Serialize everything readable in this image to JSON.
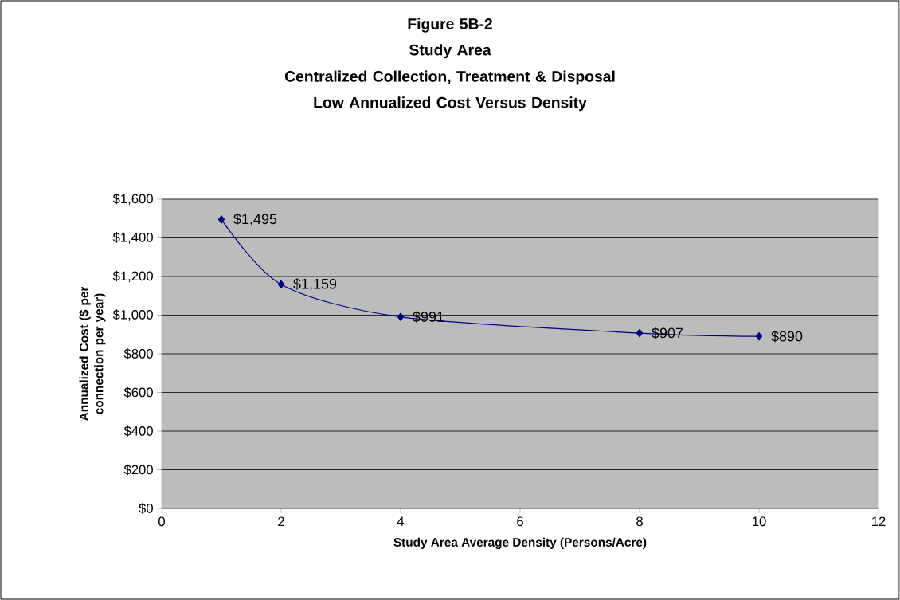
{
  "chart_data": {
    "type": "line",
    "title": "Figure 5B-2 Study Area",
    "subtitle": "Centralized Collection, Treatment & Disposal Low Annualized Cost Versus Density",
    "xlabel": "Study Area Average Density (Persons/Acre)",
    "ylabel": "Annualized Cost ($ per connection per year)",
    "x": [
      1,
      2,
      4,
      8,
      10
    ],
    "series": [
      {
        "color": "#000080",
        "values": [
          1495,
          1159,
          991,
          907,
          890
        ],
        "value_labels": [
          "$1,495",
          "$1,159",
          "$991",
          "$907",
          "$890"
        ]
      }
    ],
    "xlim": [
      0,
      12
    ],
    "xticks": [
      0,
      2,
      4,
      6,
      8,
      10,
      12
    ],
    "ylim": [
      0,
      1600
    ],
    "yticks": [
      {
        "value": 0,
        "label": "$0"
      },
      {
        "value": 200,
        "label": "$200"
      },
      {
        "value": 400,
        "label": "$400"
      },
      {
        "value": 600,
        "label": "$600"
      },
      {
        "value": 800,
        "label": "$800"
      },
      {
        "value": 1000,
        "label": "$1,000"
      },
      {
        "value": 1200,
        "label": "$1,200"
      },
      {
        "value": 1400,
        "label": "$1,400"
      },
      {
        "value": 1600,
        "label": "$1,600"
      }
    ],
    "grid": "y",
    "marker": "diamond",
    "line_style": "solid"
  }
}
